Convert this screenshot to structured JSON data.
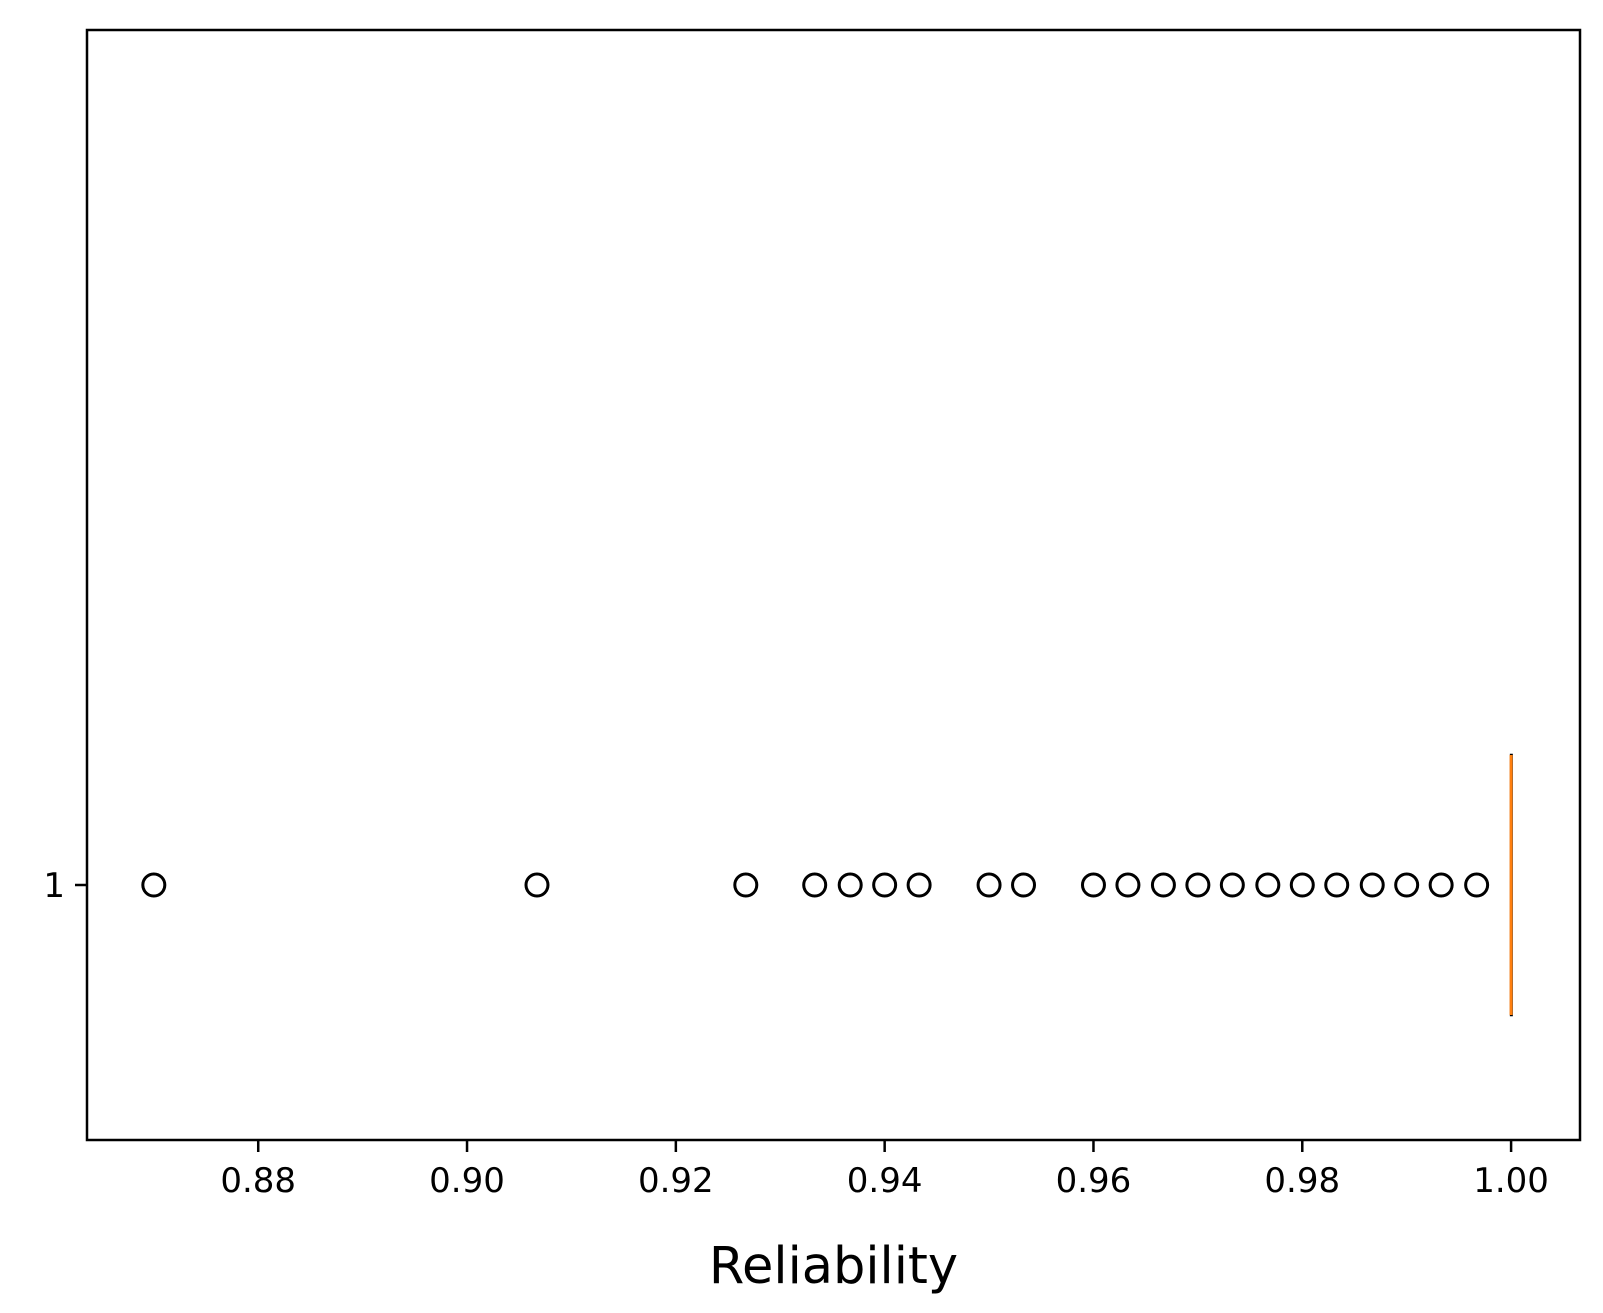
{
  "chart_data": {
    "type": "box",
    "orientation": "horizontal",
    "title": "",
    "xlabel": "Reliability",
    "ylabel": "",
    "xlim": [
      0.8636,
      1.0066
    ],
    "x_ticks": [
      0.88,
      0.9,
      0.92,
      0.94,
      0.96,
      0.98,
      1.0
    ],
    "x_tick_labels": [
      "0.88",
      "0.90",
      "0.92",
      "0.94",
      "0.96",
      "0.98",
      "1.00"
    ],
    "y_tick_labels": [
      "1"
    ],
    "grid": false,
    "series": [
      {
        "category": "1",
        "q1": 1.0,
        "median": 1.0,
        "q3": 1.0,
        "whisker_low": 1.0,
        "whisker_high": 1.0,
        "outliers": [
          0.87,
          0.9067,
          0.9267,
          0.9333,
          0.9367,
          0.94,
          0.9433,
          0.95,
          0.9533,
          0.96,
          0.9633,
          0.9667,
          0.97,
          0.9733,
          0.9767,
          0.98,
          0.9833,
          0.9867,
          0.99,
          0.9933,
          0.9967
        ]
      }
    ],
    "colors": {
      "median": "#ff7f0e",
      "box": "#000000",
      "outlier_edge": "#000000"
    }
  }
}
